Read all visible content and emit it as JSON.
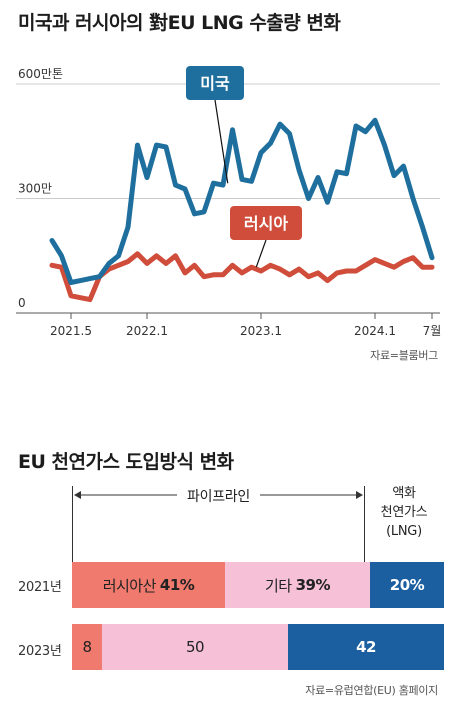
{
  "chart_data": [
    {
      "type": "line",
      "title": "미국과 러시아의 對EU LNG 수출량 변화",
      "y_unit_label": "600만톤",
      "ylim": [
        0,
        600
      ],
      "y_ticks": [
        {
          "value": 600,
          "label": "600만톤"
        },
        {
          "value": 300,
          "label": "300만"
        },
        {
          "value": 0,
          "label": "0"
        }
      ],
      "x_ticks": [
        {
          "x": 2,
          "label": "2021.5"
        },
        {
          "x": 10,
          "label": "2022.1"
        },
        {
          "x": 22,
          "label": "2023.1"
        },
        {
          "x": 34,
          "label": "2024.1"
        },
        {
          "x": 40,
          "label": "7월"
        }
      ],
      "xlim": [
        0,
        40
      ],
      "series": [
        {
          "name": "미국",
          "color": "#1f6f9e",
          "x": [
            0,
            1,
            2,
            3,
            4,
            5,
            6,
            7,
            8,
            9,
            10,
            11,
            12,
            13,
            14,
            15,
            16,
            17,
            18,
            19,
            20,
            21,
            22,
            23,
            24,
            25,
            26,
            27,
            28,
            29,
            30,
            31,
            32,
            33,
            34,
            35,
            36,
            37,
            38,
            39,
            40
          ],
          "values": [
            190,
            150,
            80,
            85,
            90,
            95,
            130,
            150,
            225,
            440,
            355,
            440,
            435,
            335,
            325,
            260,
            265,
            340,
            335,
            480,
            350,
            345,
            420,
            445,
            495,
            470,
            375,
            300,
            355,
            290,
            370,
            365,
            490,
            475,
            505,
            440,
            360,
            385,
            300,
            225,
            145
          ]
        },
        {
          "name": "러시아",
          "color": "#cf4d3a",
          "x": [
            0,
            1,
            2,
            3,
            4,
            5,
            6,
            7,
            8,
            9,
            10,
            11,
            12,
            13,
            14,
            15,
            16,
            17,
            18,
            19,
            20,
            21,
            22,
            23,
            24,
            25,
            26,
            27,
            28,
            29,
            30,
            31,
            32,
            33,
            34,
            35,
            36,
            37,
            38,
            39,
            40
          ],
          "values": [
            125,
            120,
            45,
            40,
            35,
            95,
            115,
            125,
            135,
            155,
            130,
            150,
            130,
            150,
            105,
            125,
            95,
            100,
            100,
            125,
            105,
            120,
            110,
            125,
            115,
            100,
            115,
            95,
            105,
            85,
            105,
            110,
            110,
            125,
            140,
            130,
            120,
            135,
            145,
            120,
            120
          ]
        }
      ],
      "source": "자료=블룸버그"
    },
    {
      "type": "bar",
      "title": "EU 천연가스 도입방식 변화",
      "header_pipeline": "파이프라인",
      "header_lng": [
        "액화",
        "천연가스",
        "(LNG)"
      ],
      "categories": [
        "2021년",
        "2023년"
      ],
      "series": [
        {
          "name": "러시아산",
          "color": "#f07a6e",
          "values": [
            41,
            8
          ]
        },
        {
          "name": "기타",
          "color": "#f6c1d6",
          "values": [
            39,
            50
          ]
        },
        {
          "name": "LNG",
          "color": "#1b5fa0",
          "values": [
            20,
            42
          ]
        }
      ],
      "segment_labels": [
        [
          {
            "name": "러시아산",
            "value": "41%"
          },
          {
            "name": "기타",
            "value": "39%"
          },
          {
            "name": "",
            "value": "20%"
          }
        ],
        [
          {
            "name": "",
            "value": "8"
          },
          {
            "name": "",
            "value": "50"
          },
          {
            "name": "",
            "value": "42"
          }
        ]
      ],
      "source": "자료=유럽연합(EU) 홈페이지"
    }
  ]
}
